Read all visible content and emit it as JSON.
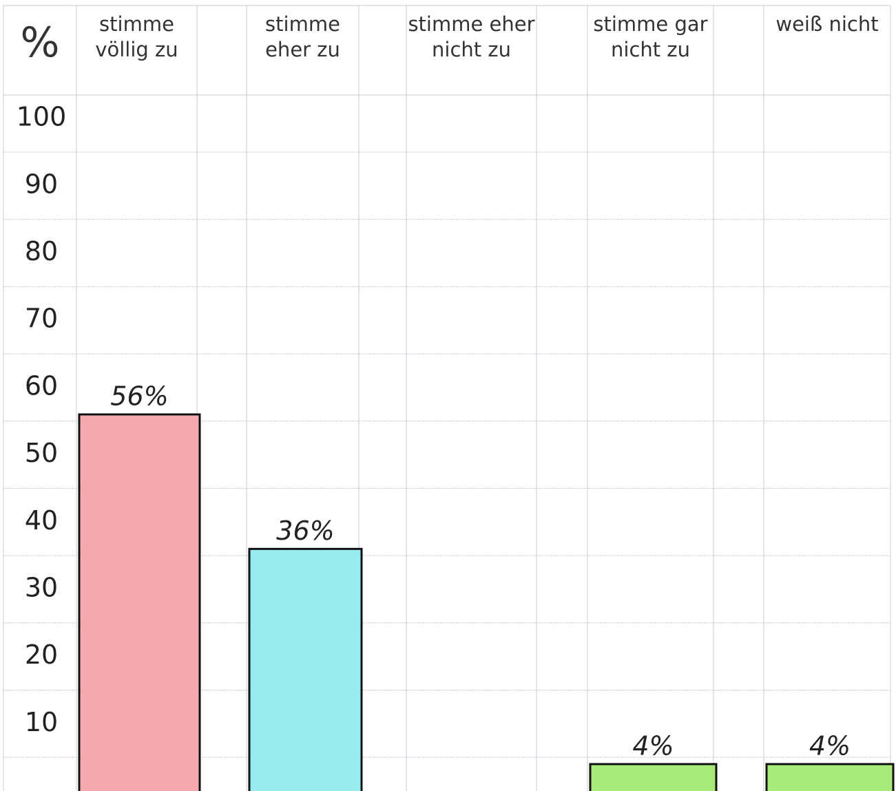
{
  "chart_data": {
    "type": "bar",
    "ylabel": "%",
    "categories": [
      "stimme völlig zu",
      "stimme eher zu",
      "stimme eher nicht zu",
      "stimme gar nicht zu",
      "weiß nicht"
    ],
    "values": [
      56,
      36,
      null,
      4,
      4
    ],
    "value_labels": [
      "56%",
      "36%",
      null,
      "4%",
      "4%"
    ],
    "colors": [
      "#f5aab2",
      "#97ecf0",
      null,
      "#a6ea78",
      "#a6ea78"
    ],
    "ylim": [
      0,
      103.5
    ],
    "yticks": [
      10,
      20,
      30,
      40,
      50,
      60,
      70,
      80,
      90,
      100
    ]
  }
}
